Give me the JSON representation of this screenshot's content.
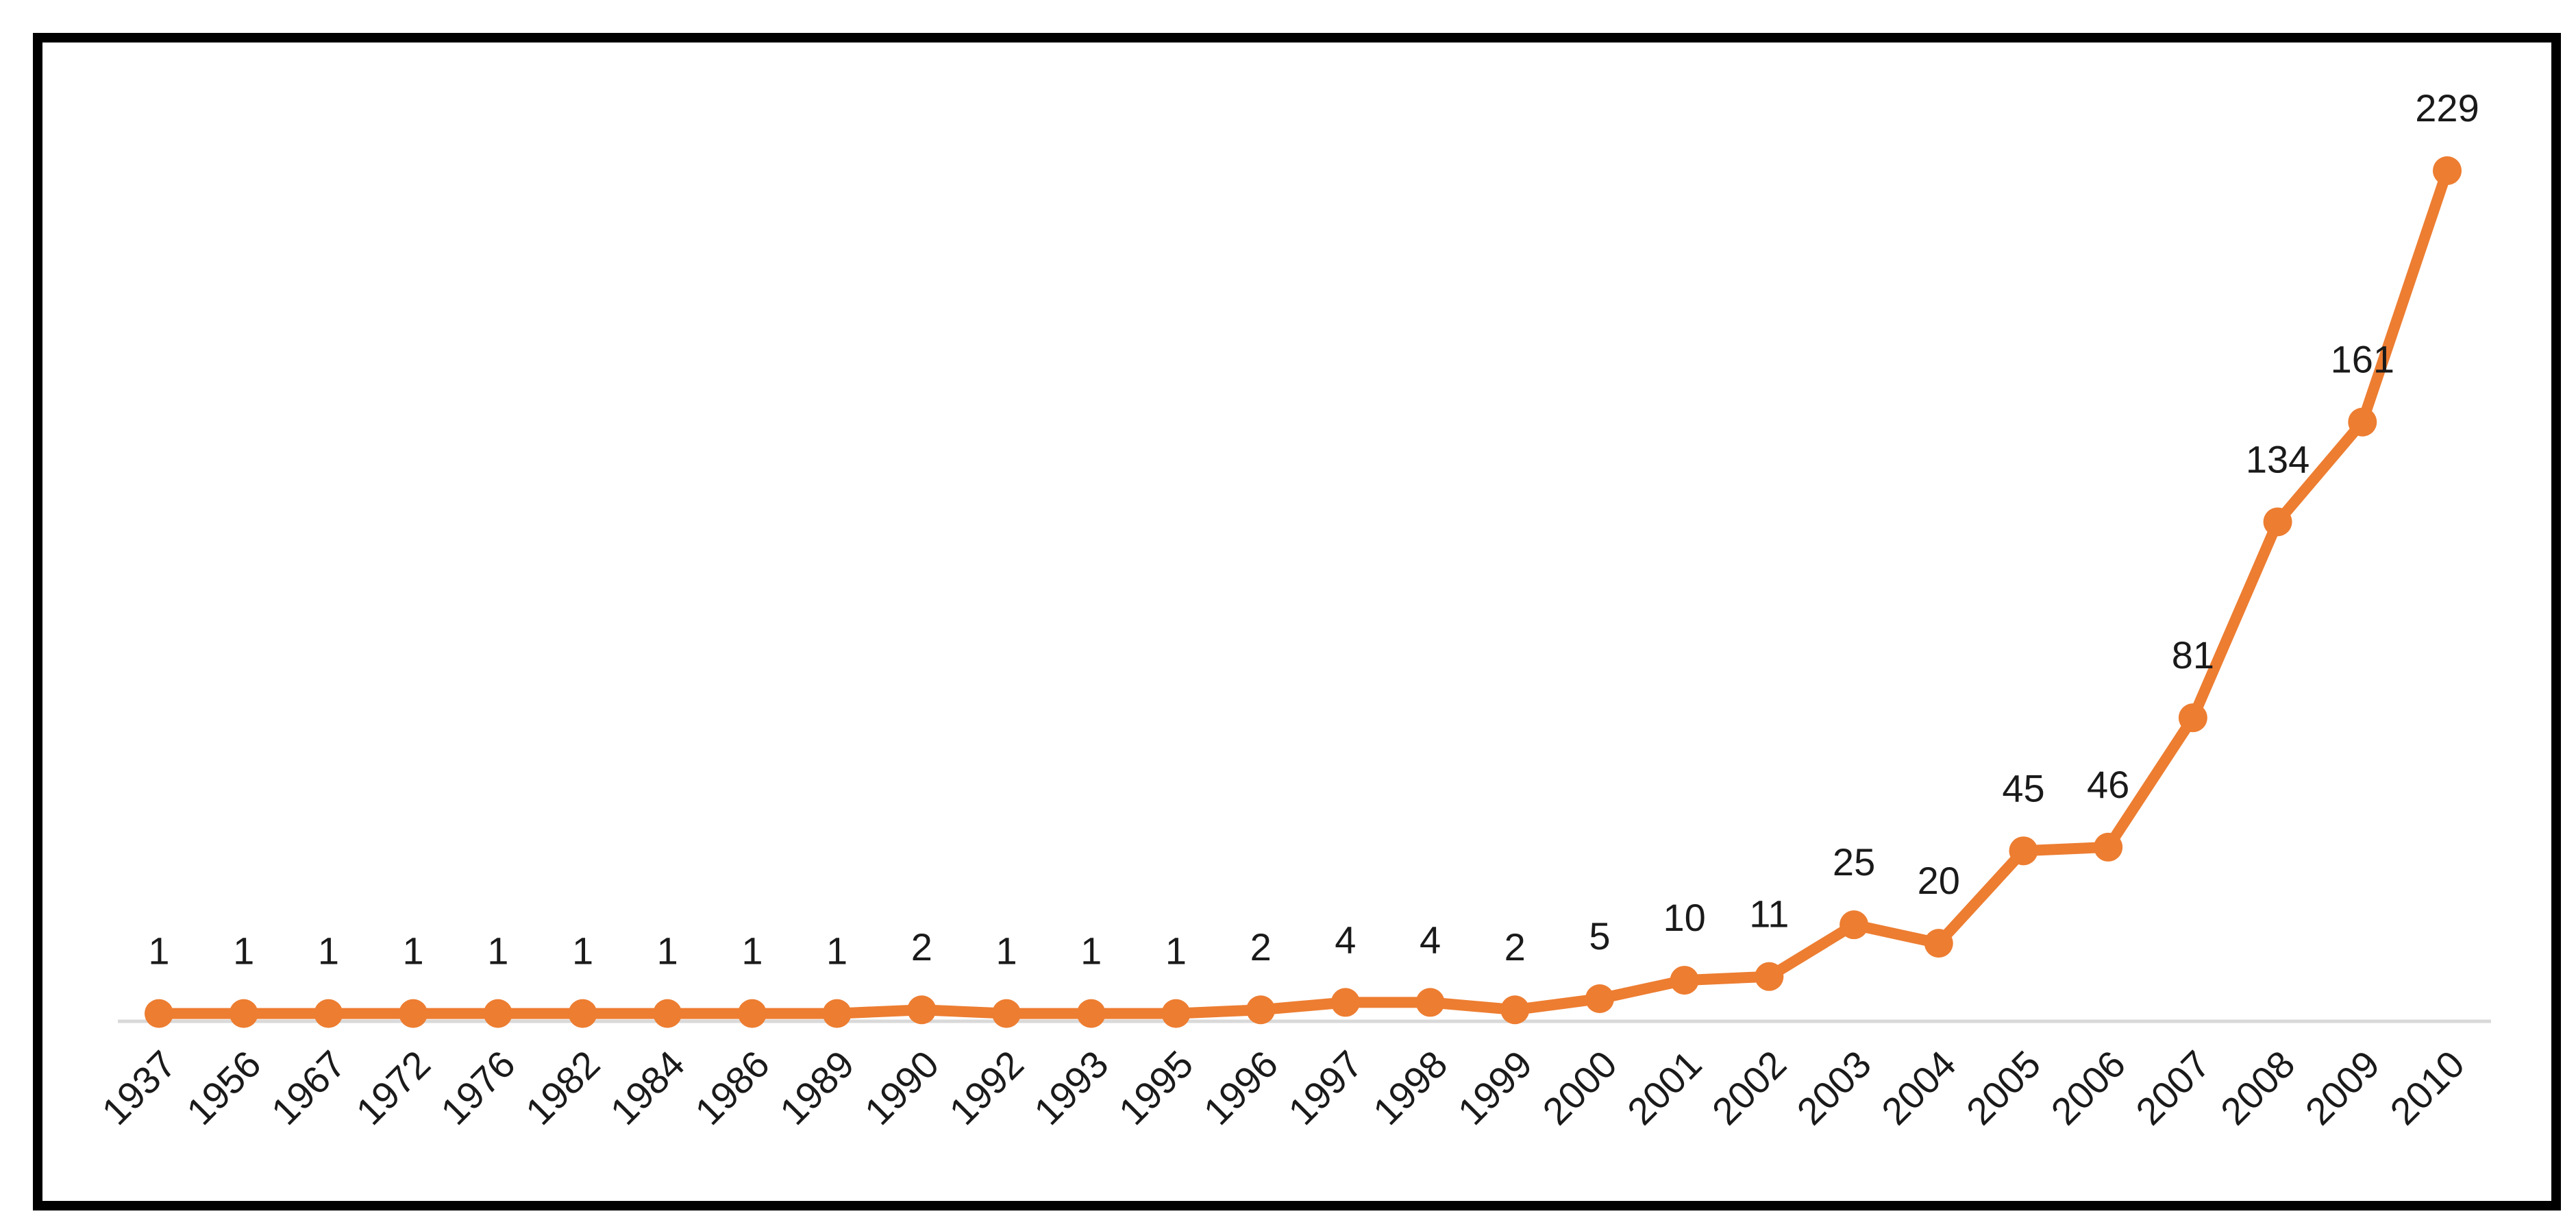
{
  "chart_data": {
    "type": "line",
    "title": "",
    "xlabel": "",
    "ylabel": "",
    "categories": [
      "1937",
      "1956",
      "1967",
      "1972",
      "1976",
      "1982",
      "1984",
      "1986",
      "1989",
      "1990",
      "1992",
      "1993",
      "1995",
      "1996",
      "1997",
      "1998",
      "1999",
      "2000",
      "2001",
      "2002",
      "2003",
      "2004",
      "2005",
      "2006",
      "2007",
      "2008",
      "2009",
      "2010"
    ],
    "series": [
      {
        "values": [
          1,
          1,
          1,
          1,
          1,
          1,
          1,
          1,
          1,
          2,
          1,
          1,
          1,
          2,
          4,
          4,
          2,
          5,
          10,
          11,
          25,
          20,
          45,
          46,
          81,
          134,
          161,
          229
        ]
      }
    ],
    "ylim": [
      0,
      229
    ],
    "grid": false,
    "legend": "none",
    "data_labels": true,
    "colors": {
      "line": "#ed7d31",
      "axis": "#d9d9d9",
      "frame": "#000000"
    }
  }
}
